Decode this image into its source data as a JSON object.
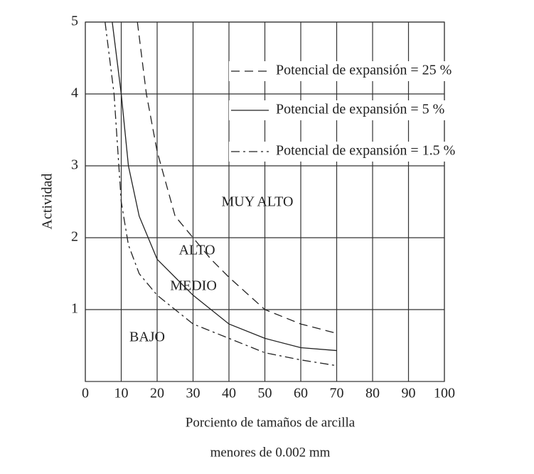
{
  "chart_data": {
    "type": "line",
    "y_label": "Actividad",
    "x_label": [
      "Porciento de tamaños de arcilla",
      "menores de 0.002 mm"
    ],
    "xlim": [
      0,
      100
    ],
    "xticks": [
      0,
      10,
      20,
      30,
      40,
      50,
      60,
      70,
      80,
      90,
      100
    ],
    "ylim": [
      0,
      5
    ],
    "yticks": [
      1,
      2,
      3,
      4,
      5
    ],
    "grid": true,
    "legend": "upper right",
    "series": [
      {
        "name": "Potencial de expansión = 25 %",
        "color": "#222",
        "dash": "dashed",
        "x": [
          14.5,
          17,
          20,
          25,
          30,
          35,
          40,
          50,
          60,
          70
        ],
        "values": [
          5,
          4,
          3.2,
          2.3,
          2,
          1.7,
          1.45,
          1.0,
          0.8,
          0.67
        ]
      },
      {
        "name": "Potencial de expansión = 5 %",
        "color": "#222",
        "dash": "solid",
        "x": [
          7.5,
          10,
          12,
          15,
          20,
          30,
          40,
          50,
          60,
          70
        ],
        "values": [
          5,
          4,
          3,
          2.3,
          1.7,
          1.2,
          0.8,
          0.6,
          0.47,
          0.43
        ]
      },
      {
        "name": "Potencial de expansión = 1.5 %",
        "color": "#222",
        "dash": "dashdot",
        "x": [
          5.5,
          8,
          10,
          12,
          15,
          20,
          30,
          40,
          50,
          60,
          70
        ],
        "values": [
          5,
          4,
          2.5,
          1.9,
          1.5,
          1.2,
          0.8,
          0.6,
          0.4,
          0.3,
          0.22
        ]
      }
    ],
    "annotations": [
      "MUY ALTO",
      "ALTO",
      "MEDIO",
      "BAJO"
    ]
  }
}
